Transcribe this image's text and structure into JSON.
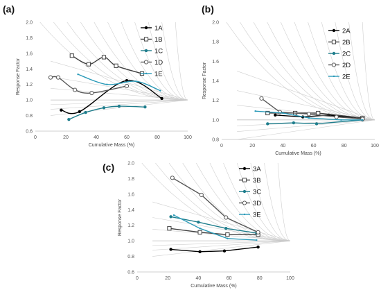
{
  "chart_data": [
    {
      "type": "line",
      "panel_label": "(a)",
      "xlabel": "Cumulative Mass (%)",
      "ylabel": "Response Factor",
      "xlim": [
        0,
        100
      ],
      "ylim": [
        0.6,
        2.0
      ],
      "xticks": [
        0,
        20,
        40,
        60,
        80,
        100
      ],
      "yticks": [
        0.6,
        0.8,
        1.0,
        1.2,
        1.4,
        1.6,
        1.8,
        2.0
      ],
      "tick_decimals": 1,
      "legend_position": "top-right",
      "series": [
        {
          "name": "1A",
          "color": "#000000",
          "marker": "filled",
          "smooth": true,
          "x": [
            17,
            29,
            60,
            83
          ],
          "y": [
            0.87,
            0.85,
            1.25,
            1.02
          ]
        },
        {
          "name": "1B",
          "color": "#404040",
          "marker": "open-square",
          "smooth": true,
          "x": [
            24,
            35,
            45,
            53,
            70
          ],
          "y": [
            1.57,
            1.46,
            1.55,
            1.44,
            1.34
          ]
        },
        {
          "name": "1C",
          "color": "#1e7d8c",
          "marker": "filled",
          "smooth": true,
          "x": [
            22,
            33,
            45,
            55,
            72
          ],
          "y": [
            0.75,
            0.84,
            0.9,
            0.92,
            0.91
          ]
        },
        {
          "name": "1D",
          "color": "#595959",
          "marker": "open-circle",
          "smooth": true,
          "x": [
            10,
            15,
            26,
            37,
            60
          ],
          "y": [
            1.29,
            1.29,
            1.13,
            1.09,
            1.18
          ]
        },
        {
          "name": "1E",
          "color": "#2a9ab8",
          "marker": "small",
          "smooth": true,
          "x": [
            28,
            47,
            66,
            82
          ],
          "y": [
            1.33,
            1.2,
            1.24,
            1.12
          ]
        }
      ]
    },
    {
      "type": "line",
      "panel_label": "(b)",
      "xlabel": "Cumulative Mass (%)",
      "ylabel": "Response Factor",
      "xlim": [
        0,
        100
      ],
      "ylim": [
        0.8,
        2.0
      ],
      "xticks": [
        0,
        20,
        40,
        60,
        80,
        100
      ],
      "yticks": [
        0.8,
        1.0,
        1.2,
        1.4,
        1.6,
        1.8,
        2.0
      ],
      "tick_decimals": 1,
      "legend_position": "top-right",
      "series": [
        {
          "name": "2A",
          "color": "#000000",
          "marker": "filled",
          "smooth": false,
          "x": [
            35,
            53,
            70,
            92
          ],
          "y": [
            1.05,
            1.03,
            1.05,
            1.01
          ]
        },
        {
          "name": "2B",
          "color": "#404040",
          "marker": "open-square",
          "smooth": false,
          "x": [
            30,
            48,
            63,
            92
          ],
          "y": [
            1.07,
            1.07,
            1.07,
            1.02
          ]
        },
        {
          "name": "2C",
          "color": "#1e7d8c",
          "marker": "filled",
          "smooth": false,
          "x": [
            30,
            47,
            62,
            92
          ],
          "y": [
            0.96,
            0.97,
            0.96,
            1.0
          ]
        },
        {
          "name": "2D",
          "color": "#595959",
          "marker": "open-circle",
          "smooth": false,
          "x": [
            26,
            38,
            57,
            75,
            92
          ],
          "y": [
            1.22,
            1.08,
            1.06,
            1.03,
            1.01
          ]
        },
        {
          "name": "2E",
          "color": "#2a9ab8",
          "marker": "small",
          "smooth": false,
          "x": [
            22,
            40,
            57,
            78,
            92
          ],
          "y": [
            1.09,
            1.07,
            1.02,
            1.0,
            1.0
          ]
        }
      ]
    },
    {
      "type": "line",
      "panel_label": "(c)",
      "xlabel": "Cumulative Mass (%)",
      "ylabel": "Response Factor",
      "xlim": [
        0,
        100
      ],
      "ylim": [
        0.6,
        2.0
      ],
      "xticks": [
        0,
        20,
        40,
        60,
        80,
        100
      ],
      "yticks": [
        0.6,
        0.8,
        1.0,
        1.2,
        1.4,
        1.6,
        1.8,
        2.0
      ],
      "tick_decimals": 1,
      "legend_position": "top-right",
      "series": [
        {
          "name": "3A",
          "color": "#000000",
          "marker": "filled",
          "smooth": false,
          "x": [
            22,
            41,
            57,
            79
          ],
          "y": [
            0.89,
            0.86,
            0.87,
            0.92
          ]
        },
        {
          "name": "3B",
          "color": "#404040",
          "marker": "open-square",
          "smooth": false,
          "x": [
            21,
            41,
            59,
            79
          ],
          "y": [
            1.16,
            1.11,
            1.08,
            1.08
          ]
        },
        {
          "name": "3C",
          "color": "#1e7d8c",
          "marker": "filled",
          "smooth": false,
          "x": [
            22,
            40,
            58,
            78
          ],
          "y": [
            1.31,
            1.24,
            1.16,
            1.1
          ]
        },
        {
          "name": "3D",
          "color": "#595959",
          "marker": "open-circle",
          "smooth": false,
          "x": [
            23,
            42,
            58,
            79
          ],
          "y": [
            1.81,
            1.59,
            1.3,
            1.11
          ]
        },
        {
          "name": "3E",
          "color": "#2a9ab8",
          "marker": "small",
          "smooth": false,
          "x": [
            24,
            41,
            59,
            78
          ],
          "y": [
            1.33,
            1.16,
            1.03,
            1.01
          ]
        }
      ]
    }
  ]
}
